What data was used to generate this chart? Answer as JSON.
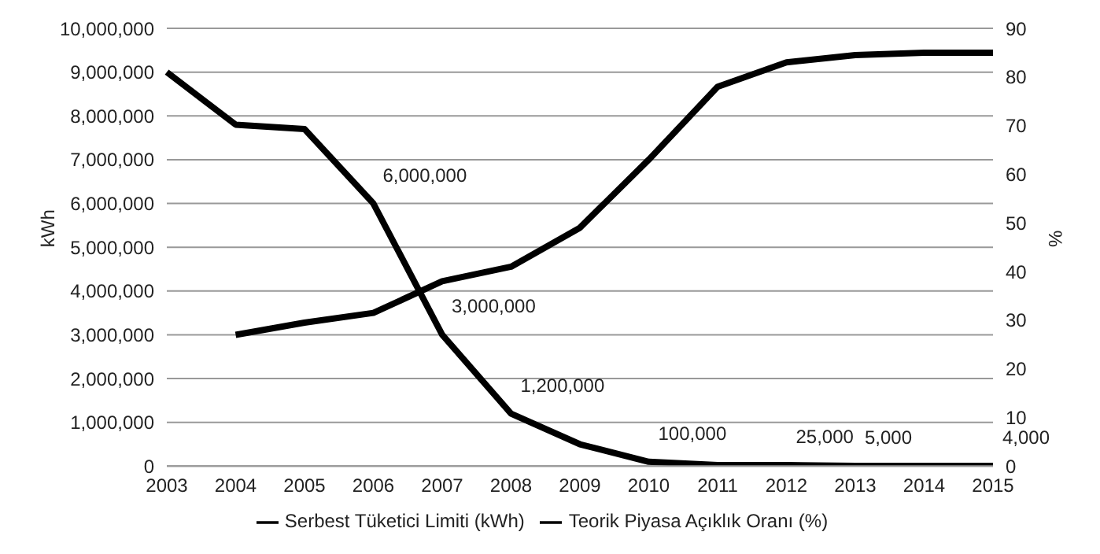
{
  "chart_data": {
    "type": "line",
    "categories": [
      "2003",
      "2004",
      "2005",
      "2006",
      "2007",
      "2008",
      "2009",
      "2010",
      "2011",
      "2012",
      "2013",
      "2014",
      "2015"
    ],
    "ylabel": "kWh",
    "y2label": "%",
    "ylim": [
      0,
      10000000
    ],
    "yticks": [
      {
        "value": 0,
        "label": "0"
      },
      {
        "value": 1000000,
        "label": "1,000,000"
      },
      {
        "value": 2000000,
        "label": "2,000,000"
      },
      {
        "value": 3000000,
        "label": "3,000,000"
      },
      {
        "value": 4000000,
        "label": "4,000,000"
      },
      {
        "value": 5000000,
        "label": "5,000,000"
      },
      {
        "value": 6000000,
        "label": "6,000,000"
      },
      {
        "value": 7000000,
        "label": "7,000,000"
      },
      {
        "value": 8000000,
        "label": "8,000,000"
      },
      {
        "value": 9000000,
        "label": "9,000,000"
      },
      {
        "value": 10000000,
        "label": "10,000,000"
      }
    ],
    "y2lim": [
      0,
      90
    ],
    "y2ticks": [
      0,
      10,
      20,
      30,
      40,
      50,
      60,
      70,
      80,
      90
    ],
    "grid": "y",
    "legend": "bottom",
    "marker": "none",
    "line_style": "solid",
    "series": [
      {
        "name": "Serbest Tüketici Limiti (kWh)",
        "color": "#000000",
        "values": [
          9000000,
          7800000,
          7700000,
          6000000,
          3000000,
          1200000,
          500000,
          100000,
          25000,
          25000,
          5000,
          5000,
          4000
        ],
        "value_labels": [
          null,
          null,
          null,
          "6,000,000",
          "3,000,000",
          "1,200,000",
          null,
          "100,000",
          null,
          "25,000",
          "5,000",
          null,
          "4,000"
        ]
      },
      {
        "name": "Teorik Piyasa Açıklık Oranı (%)",
        "color": "#000000",
        "axis": "y2",
        "values": [
          null,
          27,
          29.5,
          31.5,
          38,
          41,
          49,
          63,
          78,
          83,
          84.5,
          85,
          85
        ]
      }
    ]
  }
}
